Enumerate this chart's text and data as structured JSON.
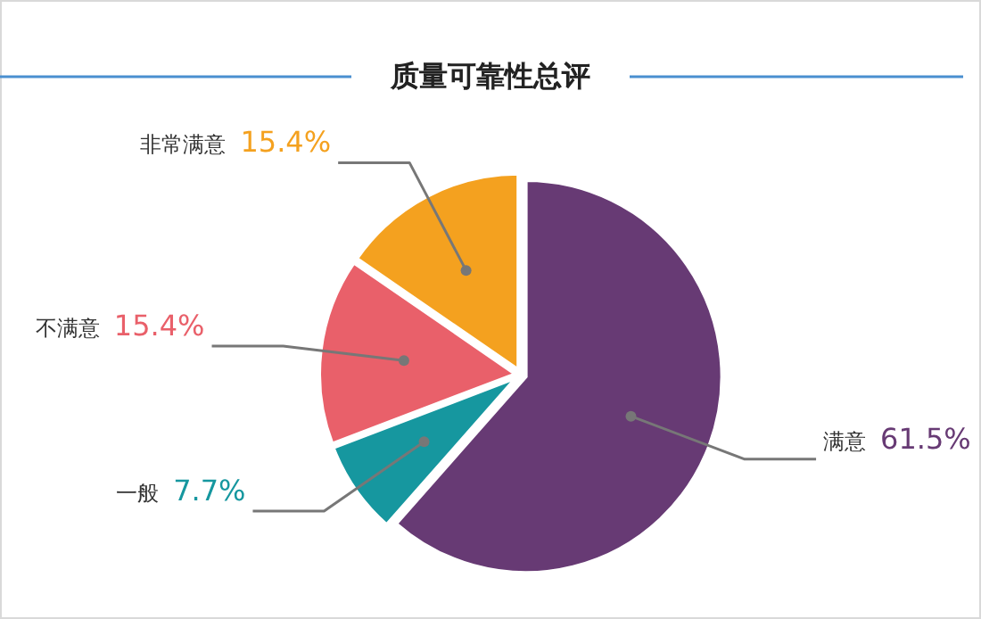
{
  "chart_data": {
    "type": "pie",
    "title": "质量可靠性总评",
    "categories": [
      "满意",
      "一般",
      "不满意",
      "非常满意"
    ],
    "values": [
      61.5,
      7.7,
      15.4,
      15.4
    ],
    "colors": [
      "#673a74",
      "#16979f",
      "#e9606a",
      "#f4a11f"
    ],
    "value_labels": [
      "61.5%",
      "7.7%",
      "15.4%",
      "15.4%"
    ]
  }
}
